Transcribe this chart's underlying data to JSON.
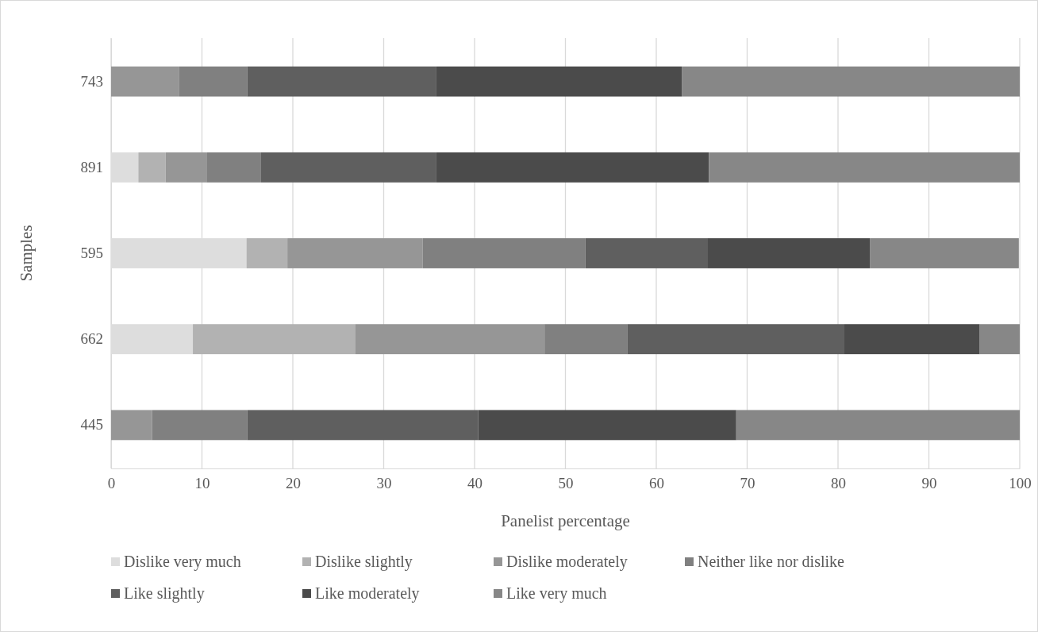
{
  "chart_data": {
    "type": "bar",
    "orientation": "horizontal",
    "stacked": true,
    "xlabel": "Panelist percentage",
    "ylabel": "Samples",
    "categories": [
      "743",
      "891",
      "595",
      "662",
      "445"
    ],
    "series": [
      {
        "name": "Dislike very much",
        "color": "#dddddd",
        "values": [
          0,
          3,
          14.9,
          9,
          0
        ]
      },
      {
        "name": "Dislike slightly",
        "color": "#b2b2b2",
        "values": [
          0,
          3,
          4.5,
          17.9,
          0
        ]
      },
      {
        "name": "Dislike moderately",
        "color": "#969696",
        "values": [
          7.5,
          4.5,
          14.9,
          20.8,
          4.5
        ]
      },
      {
        "name": "Neither like nor dislike",
        "color": "#808080",
        "values": [
          7.5,
          6,
          17.9,
          9.1,
          10.5
        ]
      },
      {
        "name": "Like slightly",
        "color": "#5f5f5f",
        "values": [
          20.8,
          19.3,
          13.4,
          23.9,
          25.4
        ]
      },
      {
        "name": "Like moderately",
        "color": "#4b4b4b",
        "values": [
          27,
          30,
          17.9,
          14.9,
          28.4
        ]
      },
      {
        "name": "Like very much",
        "color": "#878787",
        "values": [
          37.2,
          34.2,
          16.4,
          4.4,
          31.2
        ]
      }
    ],
    "xlim": [
      0,
      100
    ],
    "xticks": [
      0,
      10,
      20,
      30,
      40,
      50,
      60,
      70,
      80,
      90,
      100
    ],
    "grid": "x",
    "legend": "bottom"
  }
}
